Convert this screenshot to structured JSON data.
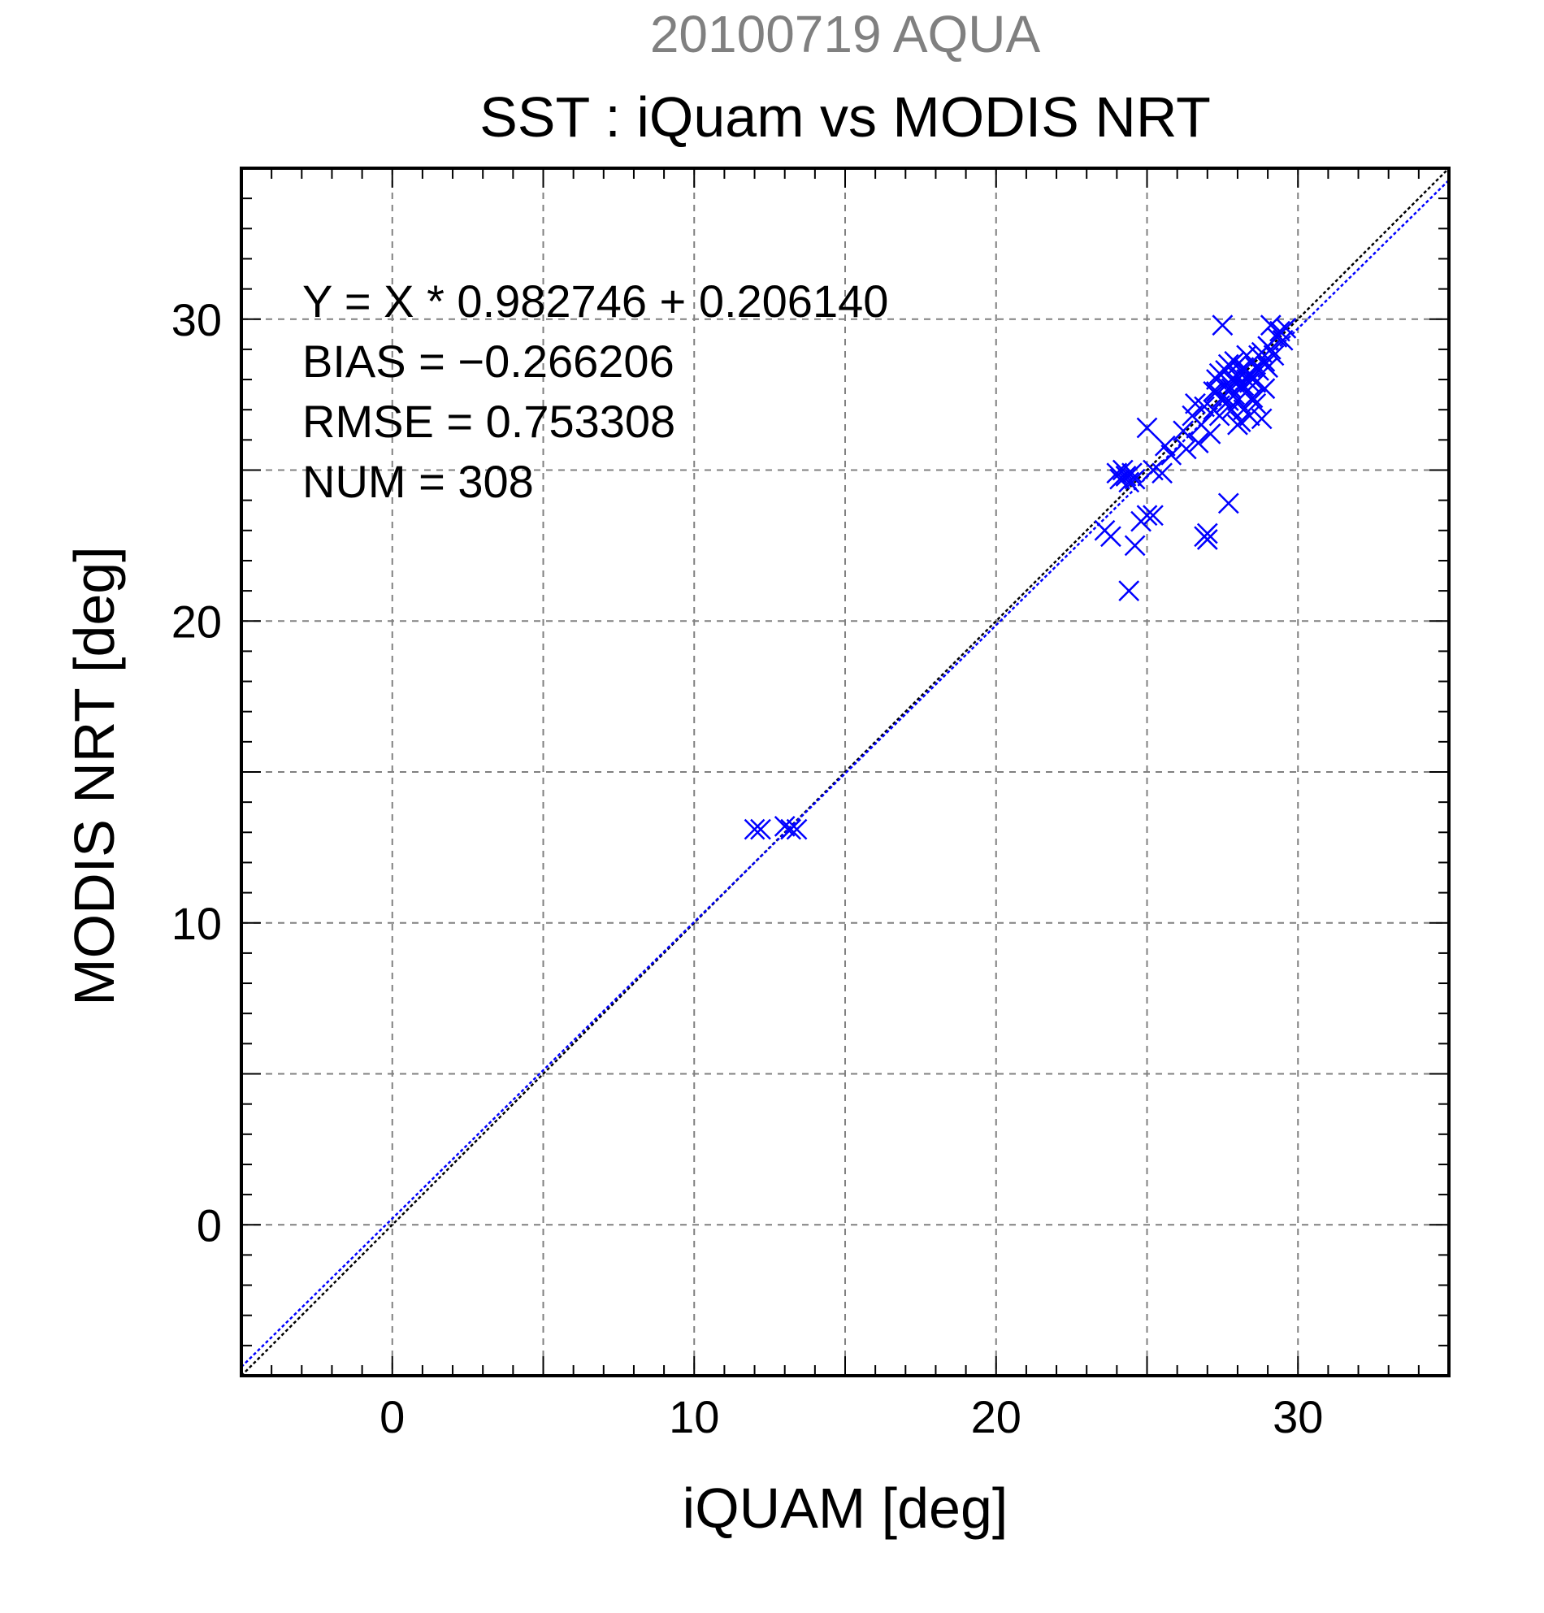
{
  "chart_data": {
    "type": "scatter",
    "supertitle": "20100719 AQUA",
    "title": "SST : iQuam vs MODIS NRT",
    "xlabel": "iQUAM [deg]",
    "ylabel": "MODIS NRT [deg]",
    "xlim": [
      -5,
      35
    ],
    "ylim": [
      -5,
      35
    ],
    "xticks": [
      0,
      10,
      20,
      30
    ],
    "yticks": [
      0,
      10,
      20,
      30
    ],
    "grid": true,
    "annotations": [
      "Y = X * 0.982746 + 0.206140",
      "BIAS = −0.266206",
      "RMSE = 0.753308",
      "NUM = 308"
    ],
    "fit": {
      "slope": 0.982746,
      "intercept": 0.20614
    },
    "colors": {
      "points": "#0000ff",
      "fit_line": "#0000ff",
      "one_to_one": "#000000",
      "supertitle": "#808080",
      "grid": "#808080"
    },
    "series": [
      {
        "marker": "x",
        "points": [
          [
            12.0,
            13.1
          ],
          [
            12.2,
            13.1
          ],
          [
            13.0,
            13.2
          ],
          [
            13.2,
            13.1
          ],
          [
            13.4,
            13.1
          ],
          [
            23.6,
            23.0
          ],
          [
            23.8,
            22.8
          ],
          [
            24.0,
            24.9
          ],
          [
            24.1,
            24.7
          ],
          [
            24.2,
            25.0
          ],
          [
            24.3,
            24.8
          ],
          [
            24.4,
            24.6
          ],
          [
            24.5,
            24.9
          ],
          [
            24.6,
            24.7
          ],
          [
            24.4,
            21.0
          ],
          [
            24.6,
            22.5
          ],
          [
            24.8,
            23.3
          ],
          [
            25.0,
            23.5
          ],
          [
            25.2,
            23.5
          ],
          [
            25.0,
            26.4
          ],
          [
            25.2,
            25.0
          ],
          [
            25.5,
            24.9
          ],
          [
            25.8,
            25.5
          ],
          [
            25.6,
            25.8
          ],
          [
            26.3,
            25.7
          ],
          [
            26.5,
            26.8
          ],
          [
            26.6,
            27.2
          ],
          [
            26.8,
            26.5
          ],
          [
            26.9,
            22.8
          ],
          [
            27.0,
            22.7
          ],
          [
            27.0,
            22.9
          ],
          [
            27.1,
            26.2
          ],
          [
            27.2,
            27.0
          ],
          [
            27.3,
            27.6
          ],
          [
            27.4,
            26.8
          ],
          [
            27.4,
            28.2
          ],
          [
            27.5,
            29.8
          ],
          [
            27.6,
            27.2
          ],
          [
            27.6,
            27.8
          ],
          [
            27.7,
            23.9
          ],
          [
            27.7,
            28.5
          ],
          [
            27.8,
            27.0
          ],
          [
            27.8,
            28.0
          ],
          [
            27.9,
            27.5
          ],
          [
            27.9,
            28.6
          ],
          [
            28.0,
            27.3
          ],
          [
            28.0,
            28.1
          ],
          [
            28.1,
            26.6
          ],
          [
            28.1,
            27.8
          ],
          [
            28.2,
            28.4
          ],
          [
            28.2,
            27.0
          ],
          [
            28.3,
            27.6
          ],
          [
            28.3,
            28.8
          ],
          [
            28.4,
            26.8
          ],
          [
            28.4,
            28.2
          ],
          [
            28.5,
            27.4
          ],
          [
            28.5,
            28.6
          ],
          [
            28.6,
            27.9
          ],
          [
            28.7,
            28.3
          ],
          [
            28.8,
            26.7
          ],
          [
            28.8,
            28.9
          ],
          [
            28.9,
            27.7
          ],
          [
            29.0,
            28.4
          ],
          [
            29.1,
            29.0
          ],
          [
            29.2,
            28.8
          ],
          [
            29.3,
            29.4
          ],
          [
            29.4,
            29.6
          ],
          [
            29.5,
            29.3
          ],
          [
            29.1,
            29.8
          ],
          [
            27.3,
            28.0
          ],
          [
            27.5,
            27.4
          ],
          [
            27.6,
            28.3
          ],
          [
            27.8,
            27.7
          ],
          [
            28.0,
            28.5
          ],
          [
            28.2,
            27.8
          ],
          [
            28.4,
            27.9
          ],
          [
            28.6,
            28.4
          ],
          [
            27.2,
            27.6
          ],
          [
            26.9,
            27.1
          ],
          [
            26.2,
            26.3
          ],
          [
            28.1,
            28.3
          ],
          [
            28.3,
            28.0
          ],
          [
            27.9,
            27.9
          ],
          [
            28.5,
            28.1
          ],
          [
            27.7,
            27.3
          ],
          [
            29.0,
            29.1
          ],
          [
            29.6,
            29.7
          ],
          [
            28.9,
            28.6
          ],
          [
            28.7,
            28.8
          ],
          [
            26.7,
            25.9
          ],
          [
            28.0,
            26.5
          ],
          [
            28.6,
            27.2
          ]
        ]
      }
    ]
  }
}
